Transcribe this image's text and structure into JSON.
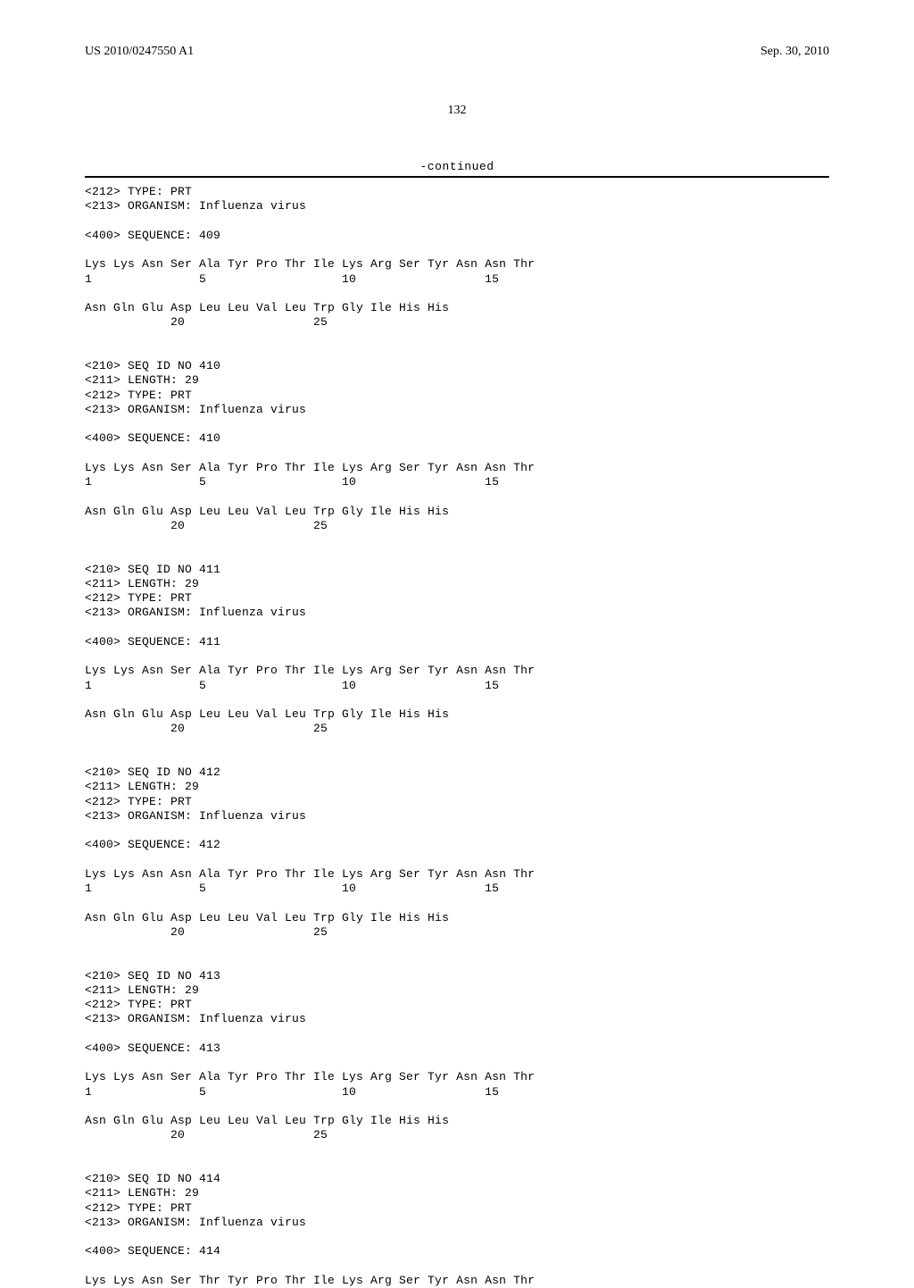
{
  "header": {
    "left": "US 2010/0247550 A1",
    "right": "Sep. 30, 2010"
  },
  "page_number": "132",
  "continued_label": "-continued",
  "sequences": [
    {
      "header_lines": [
        "<212> TYPE: PRT",
        "<213> ORGANISM: Influenza virus"
      ],
      "seq_label": "<400> SEQUENCE: 409",
      "res_lines": [
        "Lys Lys Asn Ser Ala Tyr Pro Thr Ile Lys Arg Ser Tyr Asn Asn Thr",
        "1               5                   10                  15",
        "",
        "Asn Gln Glu Asp Leu Leu Val Leu Trp Gly Ile His His",
        "            20                  25"
      ]
    },
    {
      "header_lines": [
        "<210> SEQ ID NO 410",
        "<211> LENGTH: 29",
        "<212> TYPE: PRT",
        "<213> ORGANISM: Influenza virus"
      ],
      "seq_label": "<400> SEQUENCE: 410",
      "res_lines": [
        "Lys Lys Asn Ser Ala Tyr Pro Thr Ile Lys Arg Ser Tyr Asn Asn Thr",
        "1               5                   10                  15",
        "",
        "Asn Gln Glu Asp Leu Leu Val Leu Trp Gly Ile His His",
        "            20                  25"
      ]
    },
    {
      "header_lines": [
        "<210> SEQ ID NO 411",
        "<211> LENGTH: 29",
        "<212> TYPE: PRT",
        "<213> ORGANISM: Influenza virus"
      ],
      "seq_label": "<400> SEQUENCE: 411",
      "res_lines": [
        "Lys Lys Asn Ser Ala Tyr Pro Thr Ile Lys Arg Ser Tyr Asn Asn Thr",
        "1               5                   10                  15",
        "",
        "Asn Gln Glu Asp Leu Leu Val Leu Trp Gly Ile His His",
        "            20                  25"
      ]
    },
    {
      "header_lines": [
        "<210> SEQ ID NO 412",
        "<211> LENGTH: 29",
        "<212> TYPE: PRT",
        "<213> ORGANISM: Influenza virus"
      ],
      "seq_label": "<400> SEQUENCE: 412",
      "res_lines": [
        "Lys Lys Asn Asn Ala Tyr Pro Thr Ile Lys Arg Ser Tyr Asn Asn Thr",
        "1               5                   10                  15",
        "",
        "Asn Gln Glu Asp Leu Leu Val Leu Trp Gly Ile His His",
        "            20                  25"
      ]
    },
    {
      "header_lines": [
        "<210> SEQ ID NO 413",
        "<211> LENGTH: 29",
        "<212> TYPE: PRT",
        "<213> ORGANISM: Influenza virus"
      ],
      "seq_label": "<400> SEQUENCE: 413",
      "res_lines": [
        "Lys Lys Asn Ser Ala Tyr Pro Thr Ile Lys Arg Ser Tyr Asn Asn Thr",
        "1               5                   10                  15",
        "",
        "Asn Gln Glu Asp Leu Leu Val Leu Trp Gly Ile His His",
        "            20                  25"
      ]
    },
    {
      "header_lines": [
        "<210> SEQ ID NO 414",
        "<211> LENGTH: 29",
        "<212> TYPE: PRT",
        "<213> ORGANISM: Influenza virus"
      ],
      "seq_label": "<400> SEQUENCE: 414",
      "res_lines": [
        "Lys Lys Asn Ser Thr Tyr Pro Thr Ile Lys Arg Ser Tyr Asn Asn Thr"
      ]
    }
  ]
}
